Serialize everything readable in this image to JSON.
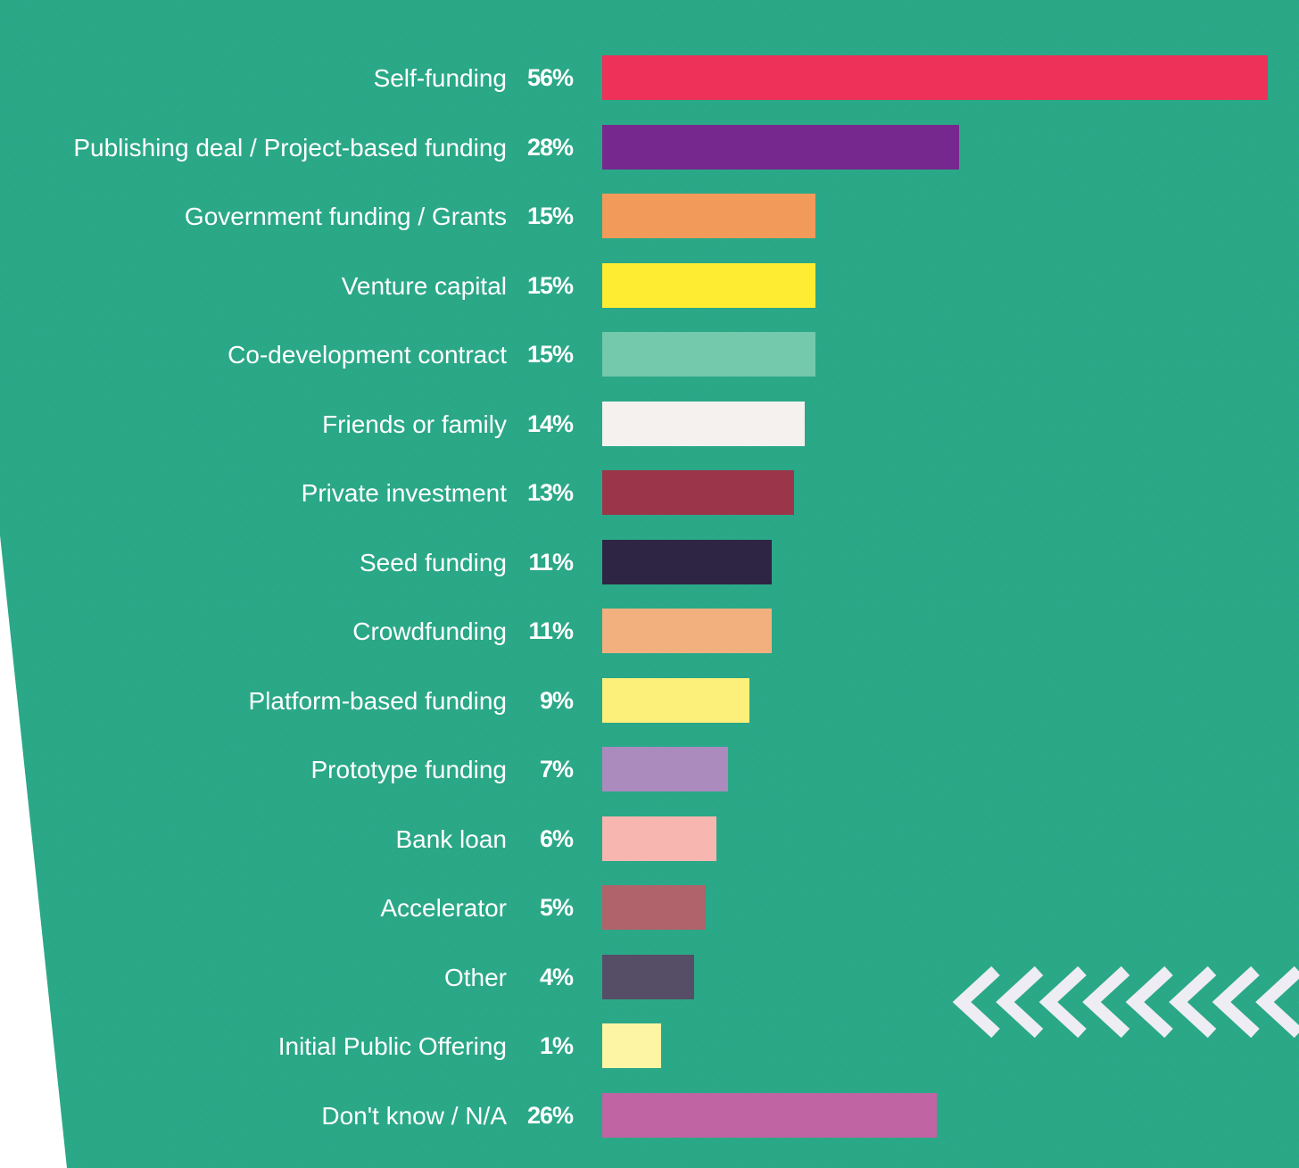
{
  "chart_data": {
    "type": "bar",
    "orientation": "horizontal",
    "unit": "%",
    "categories": [
      "Self-funding",
      "Publishing deal / Project-based funding",
      "Government funding / Grants",
      "Venture capital",
      "Co-development contract",
      "Friends or family",
      "Private investment",
      "Seed funding",
      "Crowdfunding",
      "Platform-based funding",
      "Prototype funding",
      "Bank loan",
      "Accelerator",
      "Other",
      "Initial Public Offering",
      "Don't know / N/A"
    ],
    "values": [
      56,
      28,
      15,
      15,
      15,
      14,
      13,
      11,
      11,
      9,
      7,
      6,
      5,
      4,
      1,
      26
    ],
    "value_labels": [
      "56%",
      "28%",
      "15%",
      "15%",
      "15%",
      "14%",
      "13%",
      "11%",
      "11%",
      "9%",
      "7%",
      "6%",
      "5%",
      "4%",
      "1%",
      "26%"
    ],
    "colors": [
      "#ee3159",
      "#76288e",
      "#f19a5a",
      "#feec33",
      "#74c8ab",
      "#f4f1ef",
      "#9b364a",
      "#2e2444",
      "#f3b07f",
      "#fcf07a",
      "#ab8abe",
      "#f8b6b1",
      "#b0636a",
      "#564d66",
      "#fdf5a4",
      "#c064a4"
    ],
    "background": "#2aa986",
    "grid": false
  }
}
